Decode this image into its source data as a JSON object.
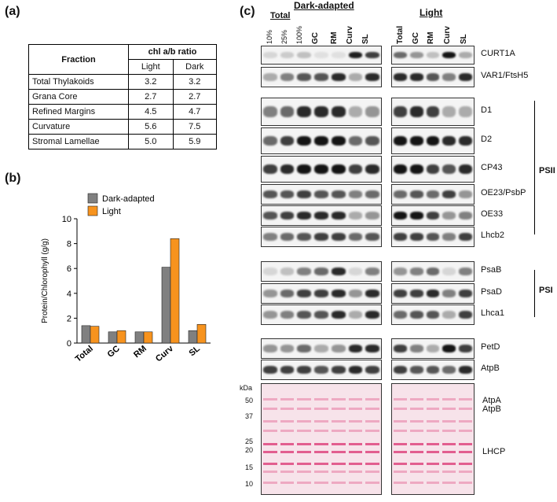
{
  "labels": {
    "a": "(a)",
    "b": "(b)",
    "c": "(c)"
  },
  "table": {
    "header_fraction": "Fraction",
    "header_ratio": "chl a/b ratio",
    "col_light": "Light",
    "col_dark": "Dark",
    "rows": [
      {
        "fraction": "Total Thylakoids",
        "light": "3.2",
        "dark": "3.2"
      },
      {
        "fraction": "Grana Core",
        "light": "2.7",
        "dark": "2.7"
      },
      {
        "fraction": "Refined Margins",
        "light": "4.5",
        "dark": "4.7"
      },
      {
        "fraction": "Curvature",
        "light": "5.6",
        "dark": "7.5"
      },
      {
        "fraction": "Stromal Lamellae",
        "light": "5.0",
        "dark": "5.9"
      }
    ]
  },
  "chart_data": {
    "type": "bar",
    "categories": [
      "Total",
      "GC",
      "RM",
      "Curv",
      "SL"
    ],
    "series": [
      {
        "name": "Dark-adapted",
        "values": [
          1.4,
          0.9,
          0.9,
          6.1,
          1.0
        ],
        "color": "#808080"
      },
      {
        "name": "Light",
        "values": [
          1.35,
          1.0,
          0.9,
          8.4,
          1.5
        ],
        "color": "#F7931E"
      }
    ],
    "ylabel": "Protein/Chlorophyll (g/g)",
    "xlabel": "",
    "ylim": [
      0,
      10
    ],
    "yticks": [
      0,
      2,
      4,
      6,
      8,
      10
    ],
    "legend": "top-left"
  },
  "blot": {
    "dark_header": "Dark-adapted",
    "light_header": "Light",
    "total_header": "Total",
    "dark_lanes_small": [
      "10%",
      "25%",
      "100%"
    ],
    "dark_lanes": [
      "GC",
      "RM",
      "Curv",
      "SL"
    ],
    "light_lanes": [
      "Total",
      "GC",
      "RM",
      "Curv",
      "SL"
    ],
    "proteins": [
      "CURT1A",
      "VAR1/FtsH5",
      "D1",
      "D2",
      "CP43",
      "OE23/PsbP",
      "OE33",
      "Lhcb2",
      "PsaB",
      "PsaD",
      "Lhca1",
      "PetD",
      "AtpB"
    ],
    "group_psii": "PSII",
    "group_psi": "PSI",
    "kda_label": "kDa",
    "kda_markers": [
      "50",
      "37",
      "25",
      "20",
      "15",
      "10"
    ],
    "stain_labels": [
      "AtpA",
      "AtpB",
      "LHCP"
    ]
  }
}
